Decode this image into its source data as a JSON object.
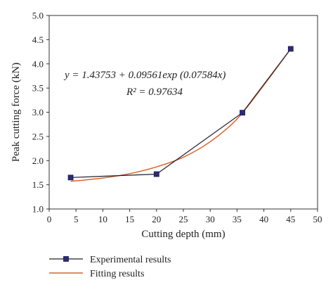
{
  "chart_data": {
    "type": "line",
    "xlabel": "Cutting depth (mm)",
    "ylabel": "Peak cutting force (kN)",
    "xlim": [
      0,
      50
    ],
    "ylim": [
      1.0,
      5.0
    ],
    "xticks": [
      "0",
      "5",
      "10",
      "15",
      "20",
      "25",
      "30",
      "35",
      "40",
      "45",
      "50"
    ],
    "yticks": [
      "1.0",
      "1.5",
      "2.0",
      "2.5",
      "3.0",
      "3.5",
      "4.0",
      "4.5",
      "5.0"
    ],
    "grid": false,
    "legend_position": "bottom-left, below plot",
    "annotations": {
      "equation": "y = 1.43753 + 0.09561exp (0.07584x)",
      "r_squared": "R² = 0.97634"
    },
    "series": [
      {
        "name": "Experimental results",
        "kind": "line-with-square-markers",
        "color": "#2e2a7a",
        "x": [
          4,
          20,
          36,
          45
        ],
        "y": [
          1.65,
          1.72,
          2.99,
          4.31
        ]
      },
      {
        "name": "Fitting results",
        "kind": "fitted-curve",
        "color": "#d9622b",
        "x": [
          4,
          10,
          15,
          20,
          25,
          30,
          35,
          40,
          45
        ],
        "y": [
          1.57,
          1.64,
          1.73,
          1.87,
          2.07,
          2.39,
          2.86,
          3.56,
          4.31
        ]
      }
    ]
  }
}
